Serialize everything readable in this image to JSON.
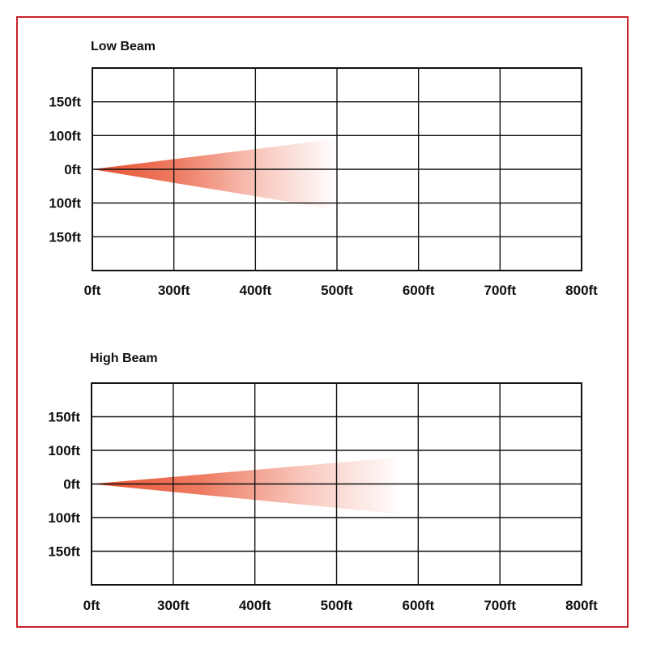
{
  "colors": {
    "frame": "#c8242b",
    "beam": "#e8502f",
    "grid": "#111111"
  },
  "chart_data": [
    {
      "type": "area",
      "title": "Low Beam",
      "x_tick_labels": [
        "0ft",
        "300ft",
        "400ft",
        "500ft",
        "600ft",
        "700ft",
        "800ft"
      ],
      "y_tick_labels": [
        "150ft",
        "100ft",
        "0ft",
        "100ft",
        "150ft"
      ],
      "beam": {
        "reach_tick": 3,
        "spread_top_tick": 0.9,
        "spread_bottom_tick": 1.2
      },
      "grid": true
    },
    {
      "type": "area",
      "title": "High Beam",
      "x_tick_labels": [
        "0ft",
        "300ft",
        "400ft",
        "500ft",
        "600ft",
        "700ft",
        "800ft"
      ],
      "y_tick_labels": [
        "150ft",
        "100ft",
        "0ft",
        "100ft",
        "150ft"
      ],
      "beam": {
        "reach_tick": 3.8,
        "spread_top_tick": 0.8,
        "spread_bottom_tick": 0.9
      },
      "grid": true
    }
  ]
}
